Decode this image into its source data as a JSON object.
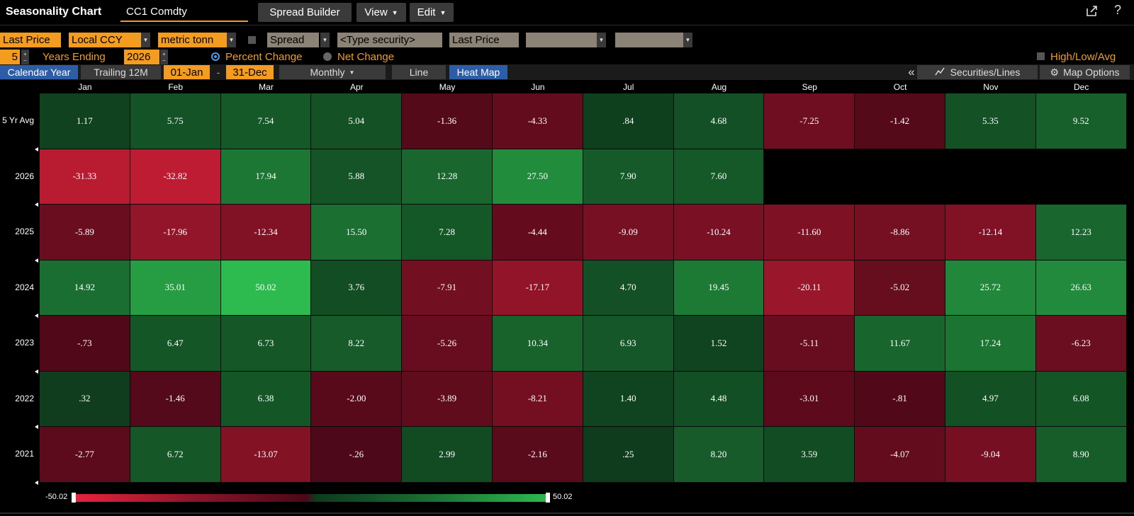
{
  "app": {
    "title": "Seasonality Chart",
    "security": "CC1 Comdty",
    "buttons": [
      "Spread Builder",
      "View",
      "Edit"
    ],
    "help": "?"
  },
  "controls": {
    "price_field": "Last Price",
    "currency": "Local CCY",
    "unit": "metric tonn",
    "spread_label": "Spread",
    "spread_security_placeholder": "<Type security>",
    "spread_field": "Last Price",
    "years_count": "5",
    "years_ending_label": "Years Ending",
    "year_end": "2026",
    "percent_change_label": "Percent Change",
    "net_change_label": "Net Change",
    "high_low_label": "High/Low/Avg",
    "tabs": {
      "calendar_year": "Calendar Year",
      "trailing": "Trailing 12M",
      "start_date": "01-Jan",
      "date_sep": "-",
      "end_date": "31-Dec",
      "period": "Monthly",
      "line": "Line",
      "heat_map": "Heat Map",
      "collapse": "«",
      "securities_lines": "Securities/Lines",
      "map_options": "Map Options"
    }
  },
  "heatmap": {
    "months": [
      "Jan",
      "Feb",
      "Mar",
      "Apr",
      "May",
      "Jun",
      "Jul",
      "Aug",
      "Sep",
      "Oct",
      "Nov",
      "Dec"
    ],
    "scale_min": "-50.02",
    "scale_max": "50.02",
    "colors": {
      "max_green": "#2dbb4f",
      "max_red": "#e8233c",
      "dark_green": "#0e3a1c",
      "dark_red": "#4a0818"
    },
    "rows": [
      {
        "label": "5 Yr Avg",
        "values": [
          "1.17",
          "5.75",
          "7.54",
          "5.04",
          "-1.36",
          "-4.33",
          ".84",
          "4.68",
          "-7.25",
          "-1.42",
          "5.35",
          "9.52"
        ]
      },
      {
        "label": "2026",
        "values": [
          "-31.33",
          "-32.82",
          "17.94",
          "5.88",
          "12.28",
          "27.50",
          "7.90",
          "7.60",
          "",
          "",
          "",
          ""
        ]
      },
      {
        "label": "2025",
        "values": [
          "-5.89",
          "-17.96",
          "-12.34",
          "15.50",
          "7.28",
          "-4.44",
          "-9.09",
          "-10.24",
          "-11.60",
          "-8.86",
          "-12.14",
          "12.23"
        ]
      },
      {
        "label": "2024",
        "values": [
          "14.92",
          "35.01",
          "50.02",
          "3.76",
          "-7.91",
          "-17.17",
          "4.70",
          "19.45",
          "-20.11",
          "-5.02",
          "25.72",
          "26.63"
        ]
      },
      {
        "label": "2023",
        "values": [
          "-.73",
          "6.47",
          "6.73",
          "8.22",
          "-5.26",
          "10.34",
          "6.93",
          "1.52",
          "-5.11",
          "11.67",
          "17.24",
          "-6.23"
        ]
      },
      {
        "label": "2022",
        "values": [
          ".32",
          "-1.46",
          "6.38",
          "-2.00",
          "-3.89",
          "-8.21",
          "1.40",
          "4.48",
          "-3.01",
          "-.81",
          "4.97",
          "6.08"
        ]
      },
      {
        "label": "2021",
        "values": [
          "-2.77",
          "6.72",
          "-13.07",
          "-.26",
          "2.99",
          "-2.16",
          ".25",
          "8.20",
          "3.59",
          "-4.07",
          "-9.04",
          "8.90"
        ]
      }
    ]
  }
}
